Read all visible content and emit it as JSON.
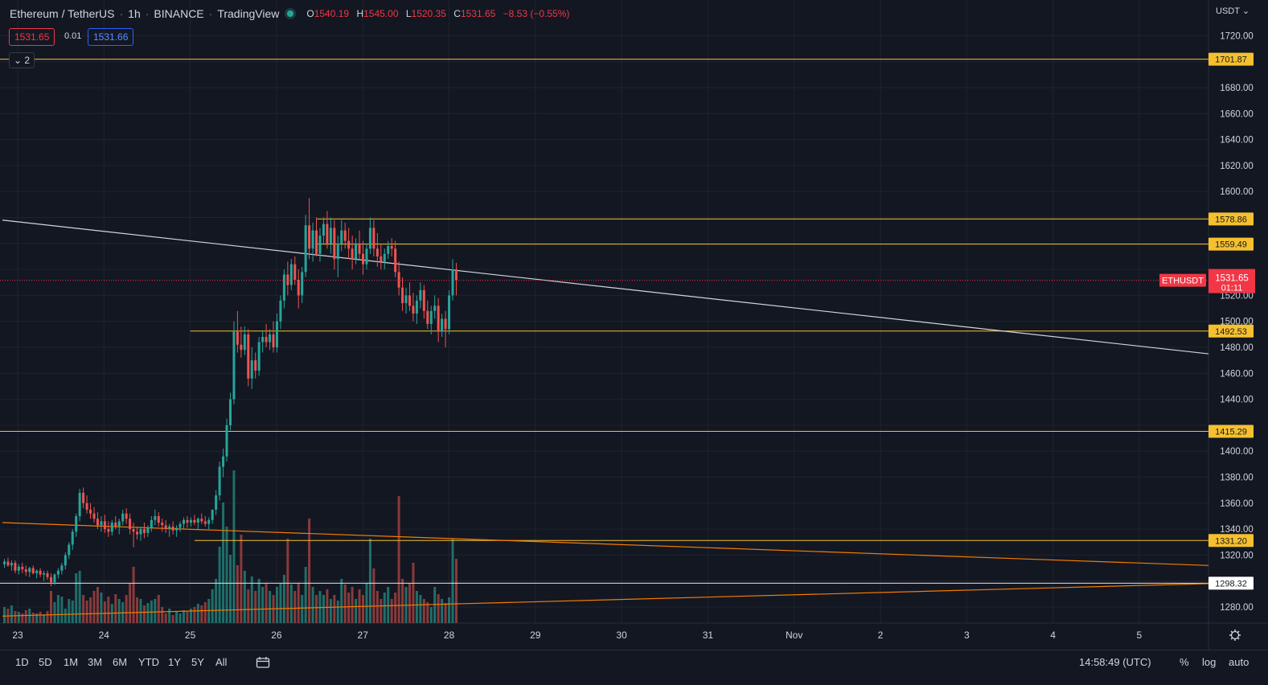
{
  "header": {
    "symbol": "Ethereum / TetherUS",
    "interval": "1h",
    "exchange": "BINANCE",
    "platform": "TradingView",
    "open_label": "O",
    "open": "1540.19",
    "high_label": "H",
    "high": "1545.00",
    "low_label": "L",
    "low": "1520.35",
    "close_label": "C",
    "close": "1531.65",
    "change": "−8.53 (−0.55%)"
  },
  "trade": {
    "sell": "1531.65",
    "spread": "0.01",
    "buy": "1531.66"
  },
  "indicators_collapse": {
    "label": "2"
  },
  "axis": {
    "currency": "USDT"
  },
  "last_price": {
    "symbol": "ETHUSDT",
    "price": "1531.65",
    "countdown": "01:11"
  },
  "bottom": {
    "ranges": [
      "1D",
      "5D",
      "1M",
      "3M",
      "6M",
      "YTD",
      "1Y",
      "5Y",
      "All"
    ],
    "clock": "14:58:49 (UTC)",
    "percent": "%",
    "log": "log",
    "auto": "auto"
  },
  "colors": {
    "bg": "#131722",
    "grid": "#1f232e",
    "up": "#26a69a",
    "down": "#ef5350",
    "level": "#f5c02f",
    "trend_white": "#d1d4dc",
    "trend_orange": "#f57c00",
    "last": "#f23645"
  },
  "chart_data": {
    "type": "candlestick",
    "ylim": [
      1270,
      1725
    ],
    "y_ticks": [
      1280,
      1300,
      1320,
      1340,
      1360,
      1380,
      1400,
      1420,
      1440,
      1460,
      1480,
      1500,
      1520,
      1540,
      1560,
      1580,
      1600,
      1620,
      1640,
      1660,
      1680,
      1700,
      1720
    ],
    "x_labels": [
      {
        "label": "23",
        "day": 23
      },
      {
        "label": "24",
        "day": 24
      },
      {
        "label": "25",
        "day": 25
      },
      {
        "label": "26",
        "day": 26
      },
      {
        "label": "27",
        "day": 27
      },
      {
        "label": "28",
        "day": 28
      },
      {
        "label": "29",
        "day": 29
      },
      {
        "label": "30",
        "day": 30
      },
      {
        "label": "31",
        "day": 31
      },
      {
        "label": "Nov",
        "day": 32
      },
      {
        "label": "2",
        "day": 33
      },
      {
        "label": "3",
        "day": 34
      },
      {
        "label": "4",
        "day": 35
      },
      {
        "label": "5",
        "day": 36
      }
    ],
    "levels": [
      {
        "price": 1701.87,
        "label": "1701.87",
        "from_day": 22.85
      },
      {
        "price": 1578.86,
        "label": "1578.86",
        "from_day": 26.47
      },
      {
        "price": 1559.49,
        "label": "1559.49",
        "from_day": 26.47
      },
      {
        "price": 1492.53,
        "label": "1492.53",
        "from_day": 25.0
      },
      {
        "price": 1415.29,
        "label": "1415.29",
        "from_day": 22.85
      },
      {
        "price": 1331.2,
        "label": "1331.20",
        "from_day": 25.05
      },
      {
        "price": 1298.32,
        "label": "1298.32",
        "from_day": 22.85,
        "white": true
      }
    ],
    "trendlines": [
      {
        "color": "white",
        "from": [
          22.85,
          1578
        ],
        "to": [
          36.9,
          1475
        ]
      },
      {
        "color": "orange",
        "from": [
          22.85,
          1345
        ],
        "to": [
          36.9,
          1312
        ]
      },
      {
        "color": "orange",
        "from": [
          22.85,
          1273
        ],
        "to": [
          36.9,
          1298
        ]
      }
    ],
    "candles": [
      [
        1313,
        1317,
        1310,
        1315
      ],
      [
        1315,
        1318,
        1311,
        1312
      ],
      [
        1312,
        1316,
        1308,
        1314
      ],
      [
        1314,
        1316,
        1306,
        1308
      ],
      [
        1308,
        1313,
        1305,
        1311
      ],
      [
        1311,
        1314,
        1306,
        1309
      ],
      [
        1309,
        1312,
        1304,
        1307
      ],
      [
        1307,
        1311,
        1303,
        1310
      ],
      [
        1310,
        1312,
        1305,
        1306
      ],
      [
        1306,
        1309,
        1302,
        1308
      ],
      [
        1308,
        1310,
        1303,
        1305
      ],
      [
        1305,
        1308,
        1300,
        1306
      ],
      [
        1306,
        1308,
        1301,
        1303
      ],
      [
        1303,
        1306,
        1296,
        1299
      ],
      [
        1299,
        1306,
        1297,
        1305
      ],
      [
        1305,
        1310,
        1302,
        1308
      ],
      [
        1308,
        1314,
        1305,
        1312
      ],
      [
        1312,
        1322,
        1309,
        1320
      ],
      [
        1320,
        1330,
        1317,
        1328
      ],
      [
        1328,
        1340,
        1324,
        1338
      ],
      [
        1338,
        1352,
        1334,
        1350
      ],
      [
        1350,
        1371,
        1346,
        1368
      ],
      [
        1368,
        1372,
        1356,
        1360
      ],
      [
        1360,
        1366,
        1352,
        1355
      ],
      [
        1355,
        1360,
        1348,
        1352
      ],
      [
        1352,
        1357,
        1345,
        1348
      ],
      [
        1348,
        1353,
        1340,
        1343
      ],
      [
        1343,
        1350,
        1338,
        1346
      ],
      [
        1346,
        1351,
        1337,
        1340
      ],
      [
        1340,
        1346,
        1334,
        1338
      ],
      [
        1338,
        1347,
        1335,
        1345
      ],
      [
        1345,
        1350,
        1340,
        1342
      ],
      [
        1342,
        1348,
        1336,
        1346
      ],
      [
        1346,
        1355,
        1343,
        1352
      ],
      [
        1352,
        1356,
        1344,
        1348
      ],
      [
        1348,
        1352,
        1336,
        1340
      ],
      [
        1340,
        1345,
        1326,
        1338
      ],
      [
        1338,
        1342,
        1332,
        1336
      ],
      [
        1336,
        1342,
        1331,
        1340
      ],
      [
        1340,
        1345,
        1333,
        1337
      ],
      [
        1337,
        1343,
        1334,
        1341
      ],
      [
        1341,
        1350,
        1338,
        1347
      ],
      [
        1347,
        1355,
        1343,
        1350
      ],
      [
        1350,
        1353,
        1342,
        1345
      ],
      [
        1345,
        1348,
        1338,
        1343
      ],
      [
        1343,
        1347,
        1337,
        1340
      ],
      [
        1340,
        1344,
        1334,
        1342
      ],
      [
        1342,
        1346,
        1336,
        1339
      ],
      [
        1339,
        1343,
        1334,
        1341
      ],
      [
        1341,
        1346,
        1338,
        1344
      ],
      [
        1344,
        1349,
        1340,
        1347
      ],
      [
        1347,
        1350,
        1341,
        1345
      ],
      [
        1345,
        1349,
        1342,
        1347
      ],
      [
        1347,
        1351,
        1343,
        1345
      ],
      [
        1345,
        1349,
        1340,
        1348
      ],
      [
        1348,
        1352,
        1344,
        1346
      ],
      [
        1346,
        1350,
        1342,
        1344
      ],
      [
        1344,
        1349,
        1340,
        1347
      ],
      [
        1347,
        1352,
        1344,
        1355
      ],
      [
        1355,
        1370,
        1351,
        1366
      ],
      [
        1366,
        1392,
        1362,
        1388
      ],
      [
        1388,
        1402,
        1380,
        1396
      ],
      [
        1396,
        1425,
        1392,
        1420
      ],
      [
        1420,
        1445,
        1416,
        1440
      ],
      [
        1440,
        1500,
        1436,
        1492
      ],
      [
        1492,
        1508,
        1476,
        1482
      ],
      [
        1482,
        1496,
        1472,
        1478
      ],
      [
        1478,
        1496,
        1474,
        1490
      ],
      [
        1490,
        1494,
        1450,
        1456
      ],
      [
        1456,
        1480,
        1448,
        1470
      ],
      [
        1470,
        1476,
        1456,
        1462
      ],
      [
        1462,
        1488,
        1458,
        1484
      ],
      [
        1484,
        1492,
        1476,
        1488
      ],
      [
        1488,
        1498,
        1480,
        1484
      ],
      [
        1484,
        1494,
        1478,
        1490
      ],
      [
        1490,
        1500,
        1476,
        1480
      ],
      [
        1480,
        1506,
        1476,
        1500
      ],
      [
        1500,
        1520,
        1494,
        1516
      ],
      [
        1516,
        1540,
        1510,
        1536
      ],
      [
        1536,
        1546,
        1520,
        1528
      ],
      [
        1528,
        1548,
        1524,
        1544
      ],
      [
        1544,
        1550,
        1528,
        1532
      ],
      [
        1532,
        1540,
        1510,
        1520
      ],
      [
        1520,
        1542,
        1514,
        1538
      ],
      [
        1538,
        1582,
        1534,
        1574
      ],
      [
        1574,
        1595,
        1548,
        1556
      ],
      [
        1556,
        1576,
        1546,
        1570
      ],
      [
        1570,
        1580,
        1550,
        1552
      ],
      [
        1552,
        1572,
        1546,
        1566
      ],
      [
        1566,
        1580,
        1560,
        1575
      ],
      [
        1575,
        1585,
        1556,
        1560
      ],
      [
        1560,
        1580,
        1552,
        1572
      ],
      [
        1572,
        1578,
        1540,
        1548
      ],
      [
        1548,
        1566,
        1534,
        1560
      ],
      [
        1560,
        1578,
        1554,
        1570
      ],
      [
        1570,
        1576,
        1556,
        1562
      ],
      [
        1562,
        1572,
        1548,
        1556
      ],
      [
        1556,
        1566,
        1540,
        1548
      ],
      [
        1548,
        1564,
        1544,
        1560
      ],
      [
        1560,
        1570,
        1548,
        1552
      ],
      [
        1552,
        1562,
        1536,
        1544
      ],
      [
        1544,
        1560,
        1540,
        1556
      ],
      [
        1556,
        1580,
        1552,
        1572
      ],
      [
        1572,
        1578,
        1550,
        1556
      ],
      [
        1556,
        1568,
        1542,
        1550
      ],
      [
        1550,
        1560,
        1540,
        1546
      ],
      [
        1546,
        1556,
        1540,
        1552
      ],
      [
        1552,
        1562,
        1548,
        1558
      ],
      [
        1558,
        1564,
        1550,
        1556
      ],
      [
        1556,
        1562,
        1534,
        1538
      ],
      [
        1538,
        1546,
        1520,
        1526
      ],
      [
        1526,
        1534,
        1508,
        1514
      ],
      [
        1514,
        1526,
        1506,
        1520
      ],
      [
        1520,
        1530,
        1508,
        1512
      ],
      [
        1512,
        1522,
        1500,
        1506
      ],
      [
        1506,
        1520,
        1498,
        1516
      ],
      [
        1516,
        1530,
        1510,
        1524
      ],
      [
        1524,
        1528,
        1502,
        1508
      ],
      [
        1508,
        1516,
        1494,
        1498
      ],
      [
        1498,
        1512,
        1490,
        1508
      ],
      [
        1508,
        1520,
        1502,
        1512
      ],
      [
        1512,
        1518,
        1484,
        1492
      ],
      [
        1492,
        1506,
        1488,
        1502
      ],
      [
        1502,
        1508,
        1480,
        1494
      ],
      [
        1494,
        1524,
        1490,
        1520
      ],
      [
        1520,
        1548,
        1516,
        1540
      ],
      [
        1540,
        1545,
        1520,
        1531.65
      ]
    ],
    "volumes": [
      20,
      18,
      22,
      15,
      14,
      12,
      16,
      18,
      13,
      12,
      14,
      11,
      15,
      40,
      26,
      35,
      33,
      18,
      30,
      28,
      62,
      65,
      35,
      28,
      32,
      40,
      45,
      38,
      27,
      33,
      24,
      36,
      30,
      26,
      35,
      50,
      70,
      32,
      30,
      22,
      25,
      28,
      30,
      35,
      20,
      12,
      18,
      10,
      15,
      12,
      16,
      14,
      18,
      20,
      24,
      22,
      26,
      30,
      42,
      55,
      95,
      150,
      120,
      85,
      190,
      72,
      110,
      65,
      42,
      58,
      40,
      55,
      45,
      50,
      40,
      35,
      45,
      50,
      60,
      105,
      48,
      40,
      50,
      35,
      70,
      130,
      45,
      35,
      40,
      35,
      42,
      30,
      35,
      28,
      55,
      48,
      38,
      45,
      30,
      42,
      35,
      50,
      105,
      68,
      40,
      30,
      38,
      45,
      30,
      38,
      158,
      55,
      45,
      50,
      75,
      40,
      35,
      30,
      26,
      20,
      45,
      36,
      30,
      25,
      32,
      105,
      80
    ]
  }
}
